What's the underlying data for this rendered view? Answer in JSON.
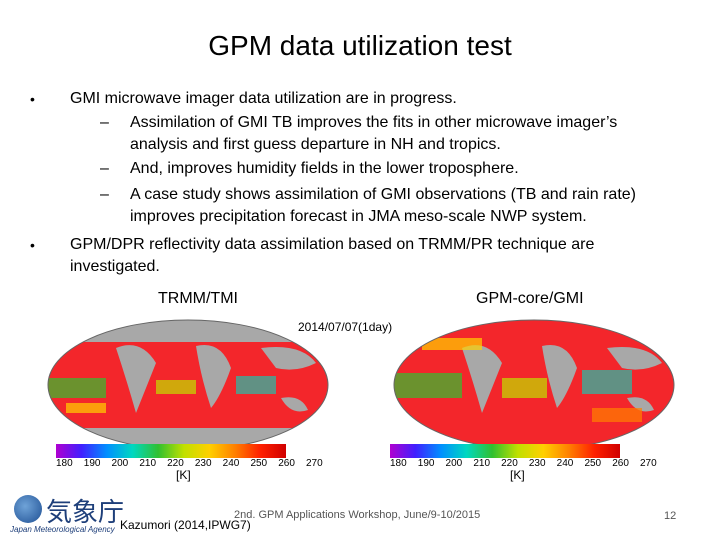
{
  "slide": {
    "title": "GPM data utilization test",
    "bullets": [
      {
        "text": "GMI microwave imager data utilization are in progress.",
        "subs": [
          [
            "Assimilation of GMI TB improves the fits in other microwave imager’s",
            "analysis and first guess departure in NH and tropics."
          ],
          [
            "And, improves humidity fields in the lower troposphere."
          ],
          [
            "A case study shows assimilation of GMI observations (TB and rain rate)",
            "improves precipitation forecast in JMA meso-scale NWP system."
          ]
        ]
      },
      {
        "lines": [
          "GPM/DPR reflectivity data assimilation based on TRMM/PR technique are",
          "investigated."
        ]
      }
    ],
    "bullet_mark": "•",
    "dash_mark": "–"
  },
  "figure": {
    "left_label": "TRMM/TMI",
    "right_label": "GPM-core/GMI",
    "date": "2014/07/07(1day)",
    "colorbar_ticks": [
      "180",
      "190",
      "200",
      "210",
      "220",
      "230",
      "240",
      "250",
      "260",
      "270"
    ],
    "unit": "[K]",
    "colorbar_colors": [
      "#b000d0",
      "#4020ff",
      "#0090ff",
      "#00d8c0",
      "#30c030",
      "#c0e000",
      "#ffd000",
      "#ff8000",
      "#ff2000",
      "#d00000"
    ],
    "ocean_color": "#f3262b",
    "land_color": "#a8a8a8"
  },
  "footer": {
    "credit": "Kazumori (2014,IPWG7)",
    "workshop": "2nd. GPM Applications Workshop, June/9-10/2015",
    "page": "12",
    "logo_kanji": "気象庁",
    "logo_text": "Japan Meteorological Agency"
  }
}
